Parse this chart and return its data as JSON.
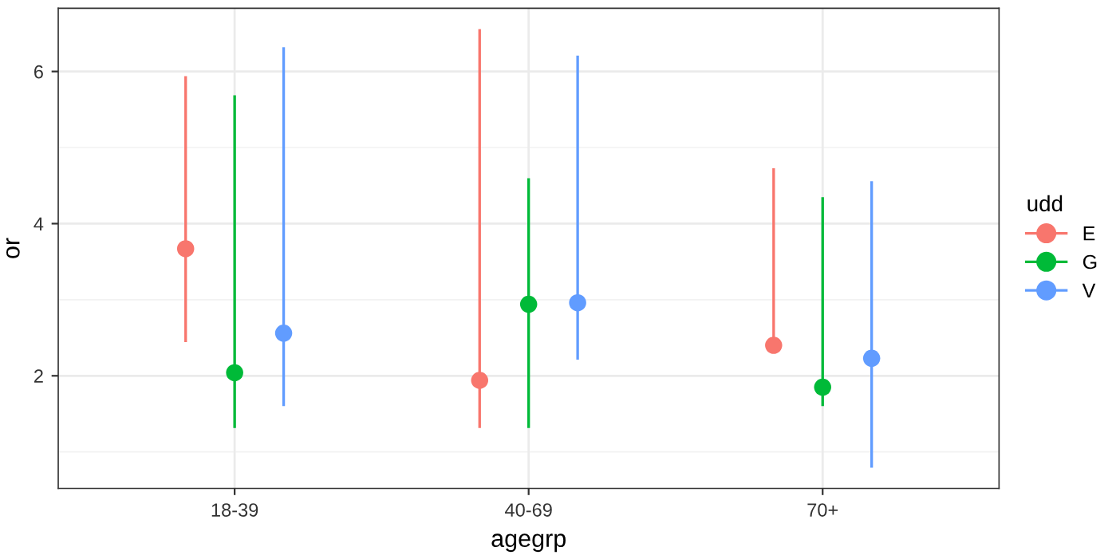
{
  "chart_data": {
    "type": "scatter",
    "xlabel": "agegrp",
    "ylabel": "or",
    "legend_title": "udd",
    "legend": "right",
    "grid": true,
    "marker": "circle",
    "categories": [
      "18-39",
      "40-69",
      "70+"
    ],
    "ylim": [
      0.52,
      6.83
    ],
    "yticks": [
      2,
      4,
      6
    ],
    "series": [
      {
        "name": "E",
        "color": "#f8766d",
        "values": [
          3.67,
          1.94,
          2.4
        ],
        "errors": [
          [
            2.46,
            5.92
          ],
          [
            1.33,
            6.54
          ],
          [
            2.4,
            4.71
          ]
        ]
      },
      {
        "name": "G",
        "color": "#00ba38",
        "values": [
          2.04,
          2.94,
          1.85
        ],
        "errors": [
          [
            1.33,
            5.67
          ],
          [
            1.33,
            4.58
          ],
          [
            1.62,
            4.33
          ]
        ]
      },
      {
        "name": "V",
        "color": "#619cff",
        "values": [
          2.56,
          2.96,
          2.23
        ],
        "errors": [
          [
            1.62,
            6.3
          ],
          [
            2.23,
            6.19
          ],
          [
            0.81,
            4.54
          ]
        ]
      }
    ]
  }
}
